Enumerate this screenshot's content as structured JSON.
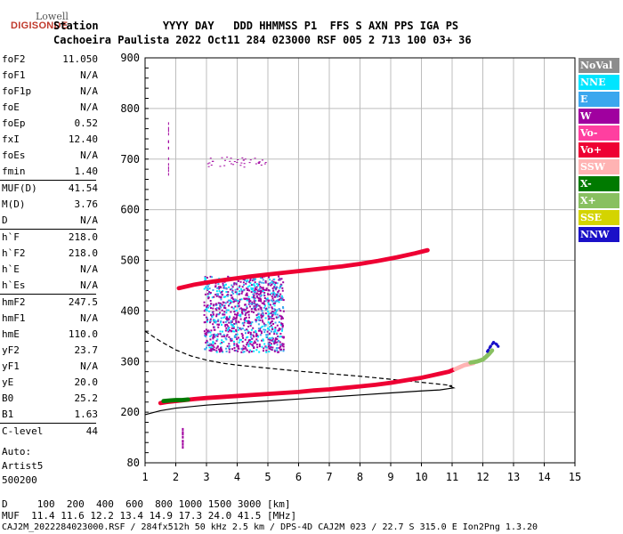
{
  "logo": {
    "line1": "Lowell",
    "line2": "DIGISONDE"
  },
  "header": {
    "row1": "Station          YYYY DAY   DDD HHMMSS P1  FFS S AXN PPS IGA PS",
    "row2": "Cachoeira Paulista 2022 Oct11 284 023000 RSF 005 2 713 100 03+ 36"
  },
  "params": [
    {
      "label": "foF2",
      "value": "11.050"
    },
    {
      "label": "foF1",
      "value": "N/A"
    },
    {
      "label": "foF1p",
      "value": "N/A"
    },
    {
      "label": "foE",
      "value": "N/A"
    },
    {
      "label": "foEp",
      "value": "0.52"
    },
    {
      "label": "fxI",
      "value": "12.40"
    },
    {
      "label": "foEs",
      "value": "N/A"
    },
    {
      "label": "fmin",
      "value": "1.40"
    },
    {
      "label": "MUF(D)",
      "value": "41.54"
    },
    {
      "label": "M(D)",
      "value": "3.76"
    },
    {
      "label": "D",
      "value": "N/A"
    },
    {
      "label": "h`F",
      "value": "218.0"
    },
    {
      "label": "h`F2",
      "value": "218.0"
    },
    {
      "label": "h`E",
      "value": "N/A"
    },
    {
      "label": "h`Es",
      "value": "N/A"
    },
    {
      "label": "hmF2",
      "value": "247.5"
    },
    {
      "label": "hmF1",
      "value": "N/A"
    },
    {
      "label": "hmE",
      "value": "110.0"
    },
    {
      "label": "yF2",
      "value": "23.7"
    },
    {
      "label": "yF1",
      "value": "N/A"
    },
    {
      "label": "yE",
      "value": "20.0"
    },
    {
      "label": "B0",
      "value": "25.2"
    },
    {
      "label": "B1",
      "value": "1.63"
    },
    {
      "label": "C-level",
      "value": "44"
    }
  ],
  "autoscale": [
    "Auto:",
    "Artist5",
    "500200"
  ],
  "legend": [
    {
      "label": "NoVal",
      "color": "#8c8c8c"
    },
    {
      "label": "NNE",
      "color": "#00e5ff"
    },
    {
      "label": "E",
      "color": "#3ba7ee"
    },
    {
      "label": "W",
      "color": "#a0009f"
    },
    {
      "label": "Vo-",
      "color": "#ff3fa0"
    },
    {
      "label": "Vo+",
      "color": "#ee0033"
    },
    {
      "label": "SSW",
      "color": "#ffb3b3"
    },
    {
      "label": "X-",
      "color": "#007a00"
    },
    {
      "label": "X+",
      "color": "#88c060"
    },
    {
      "label": "SSE",
      "color": "#d4d400"
    },
    {
      "label": "NNW",
      "color": "#1a10c8"
    }
  ],
  "footer": {
    "line1": "D     100  200  400  600  800 1000 1500 3000 [km]",
    "line2": "MUF  11.4 11.6 12.2 13.4 14.9 17.3 24.0 41.5 [MHz]",
    "line3": "CAJ2M_2022284023000.RSF / 284fx512h 50 kHz 2.5 km / DPS-4D CAJ2M 023 / 22.7 S 315.0 E Ion2Png 1.3.20"
  },
  "chart_data": {
    "type": "scatter",
    "title": "",
    "xlabel": "",
    "ylabel": "",
    "xlim": [
      1,
      15
    ],
    "ylim": [
      100,
      900
    ],
    "x_ticks": [
      1,
      2,
      3,
      4,
      5,
      6,
      7,
      8,
      9,
      10,
      11,
      12,
      13,
      14,
      15
    ],
    "y_ticks": [
      200,
      300,
      400,
      500,
      600,
      700,
      800,
      900
    ],
    "y_bottom_label": "80",
    "grid": true,
    "series": [
      {
        "name": "Vo+",
        "x": [
          1.5,
          1.7,
          2.0,
          2.3,
          2.6,
          3.0,
          3.5,
          4.0,
          4.5,
          5.0,
          5.5,
          6.0,
          6.5,
          7.0,
          7.5,
          8.0,
          8.5,
          9.0,
          9.5,
          10.0,
          10.3,
          10.6,
          10.9,
          11.05
        ],
        "y": [
          218,
          220,
          222,
          224,
          226,
          228,
          230,
          232,
          234,
          236,
          238,
          240,
          243,
          245,
          248,
          251,
          254,
          258,
          263,
          268,
          272,
          276,
          280,
          284
        ]
      },
      {
        "name": "X-",
        "x": [
          1.6,
          1.8,
          2.0,
          2.2,
          2.4
        ],
        "y": [
          222,
          223,
          224,
          224,
          225
        ]
      },
      {
        "name": "SSW",
        "x": [
          11.1,
          11.25,
          11.4,
          11.55,
          11.7
        ],
        "y": [
          285,
          289,
          293,
          295,
          297
        ]
      },
      {
        "name": "X+",
        "x": [
          11.6,
          11.8,
          12.0,
          12.1,
          12.2,
          12.3
        ],
        "y": [
          298,
          300,
          304,
          309,
          315,
          322
        ]
      },
      {
        "name": "NNW",
        "x": [
          12.15,
          12.25,
          12.35,
          12.45,
          12.5
        ],
        "y": [
          320,
          330,
          338,
          334,
          330
        ]
      },
      {
        "name": "Vo+ (upper trace)",
        "x": [
          2.1,
          2.6,
          3.2,
          3.8,
          4.4,
          5.0,
          5.6,
          6.2,
          6.8,
          7.4,
          8.0,
          8.6,
          9.2,
          9.8,
          10.2
        ],
        "y": [
          445,
          452,
          458,
          463,
          468,
          472,
          476,
          480,
          484,
          488,
          493,
          499,
          506,
          514,
          520
        ]
      }
    ],
    "profile_solid": {
      "x": [
        1.0,
        1.5,
        2.0,
        3.0,
        4.0,
        5.0,
        6.0,
        7.0,
        8.0,
        9.0,
        10.0,
        10.6,
        11.05,
        10.9
      ],
      "y": [
        195,
        203,
        208,
        214,
        218,
        222,
        226,
        230,
        234,
        238,
        242,
        244,
        248,
        252
      ]
    },
    "profile_dashed": {
      "x": [
        1.0,
        1.5,
        2.0,
        2.5,
        3.0,
        3.5,
        4.0,
        5.0,
        6.0,
        7.0,
        8.0,
        9.0,
        10.0,
        10.8,
        11.0
      ],
      "y": [
        360,
        340,
        323,
        311,
        303,
        297,
        293,
        287,
        281,
        276,
        271,
        265,
        259,
        254,
        252
      ]
    }
  }
}
